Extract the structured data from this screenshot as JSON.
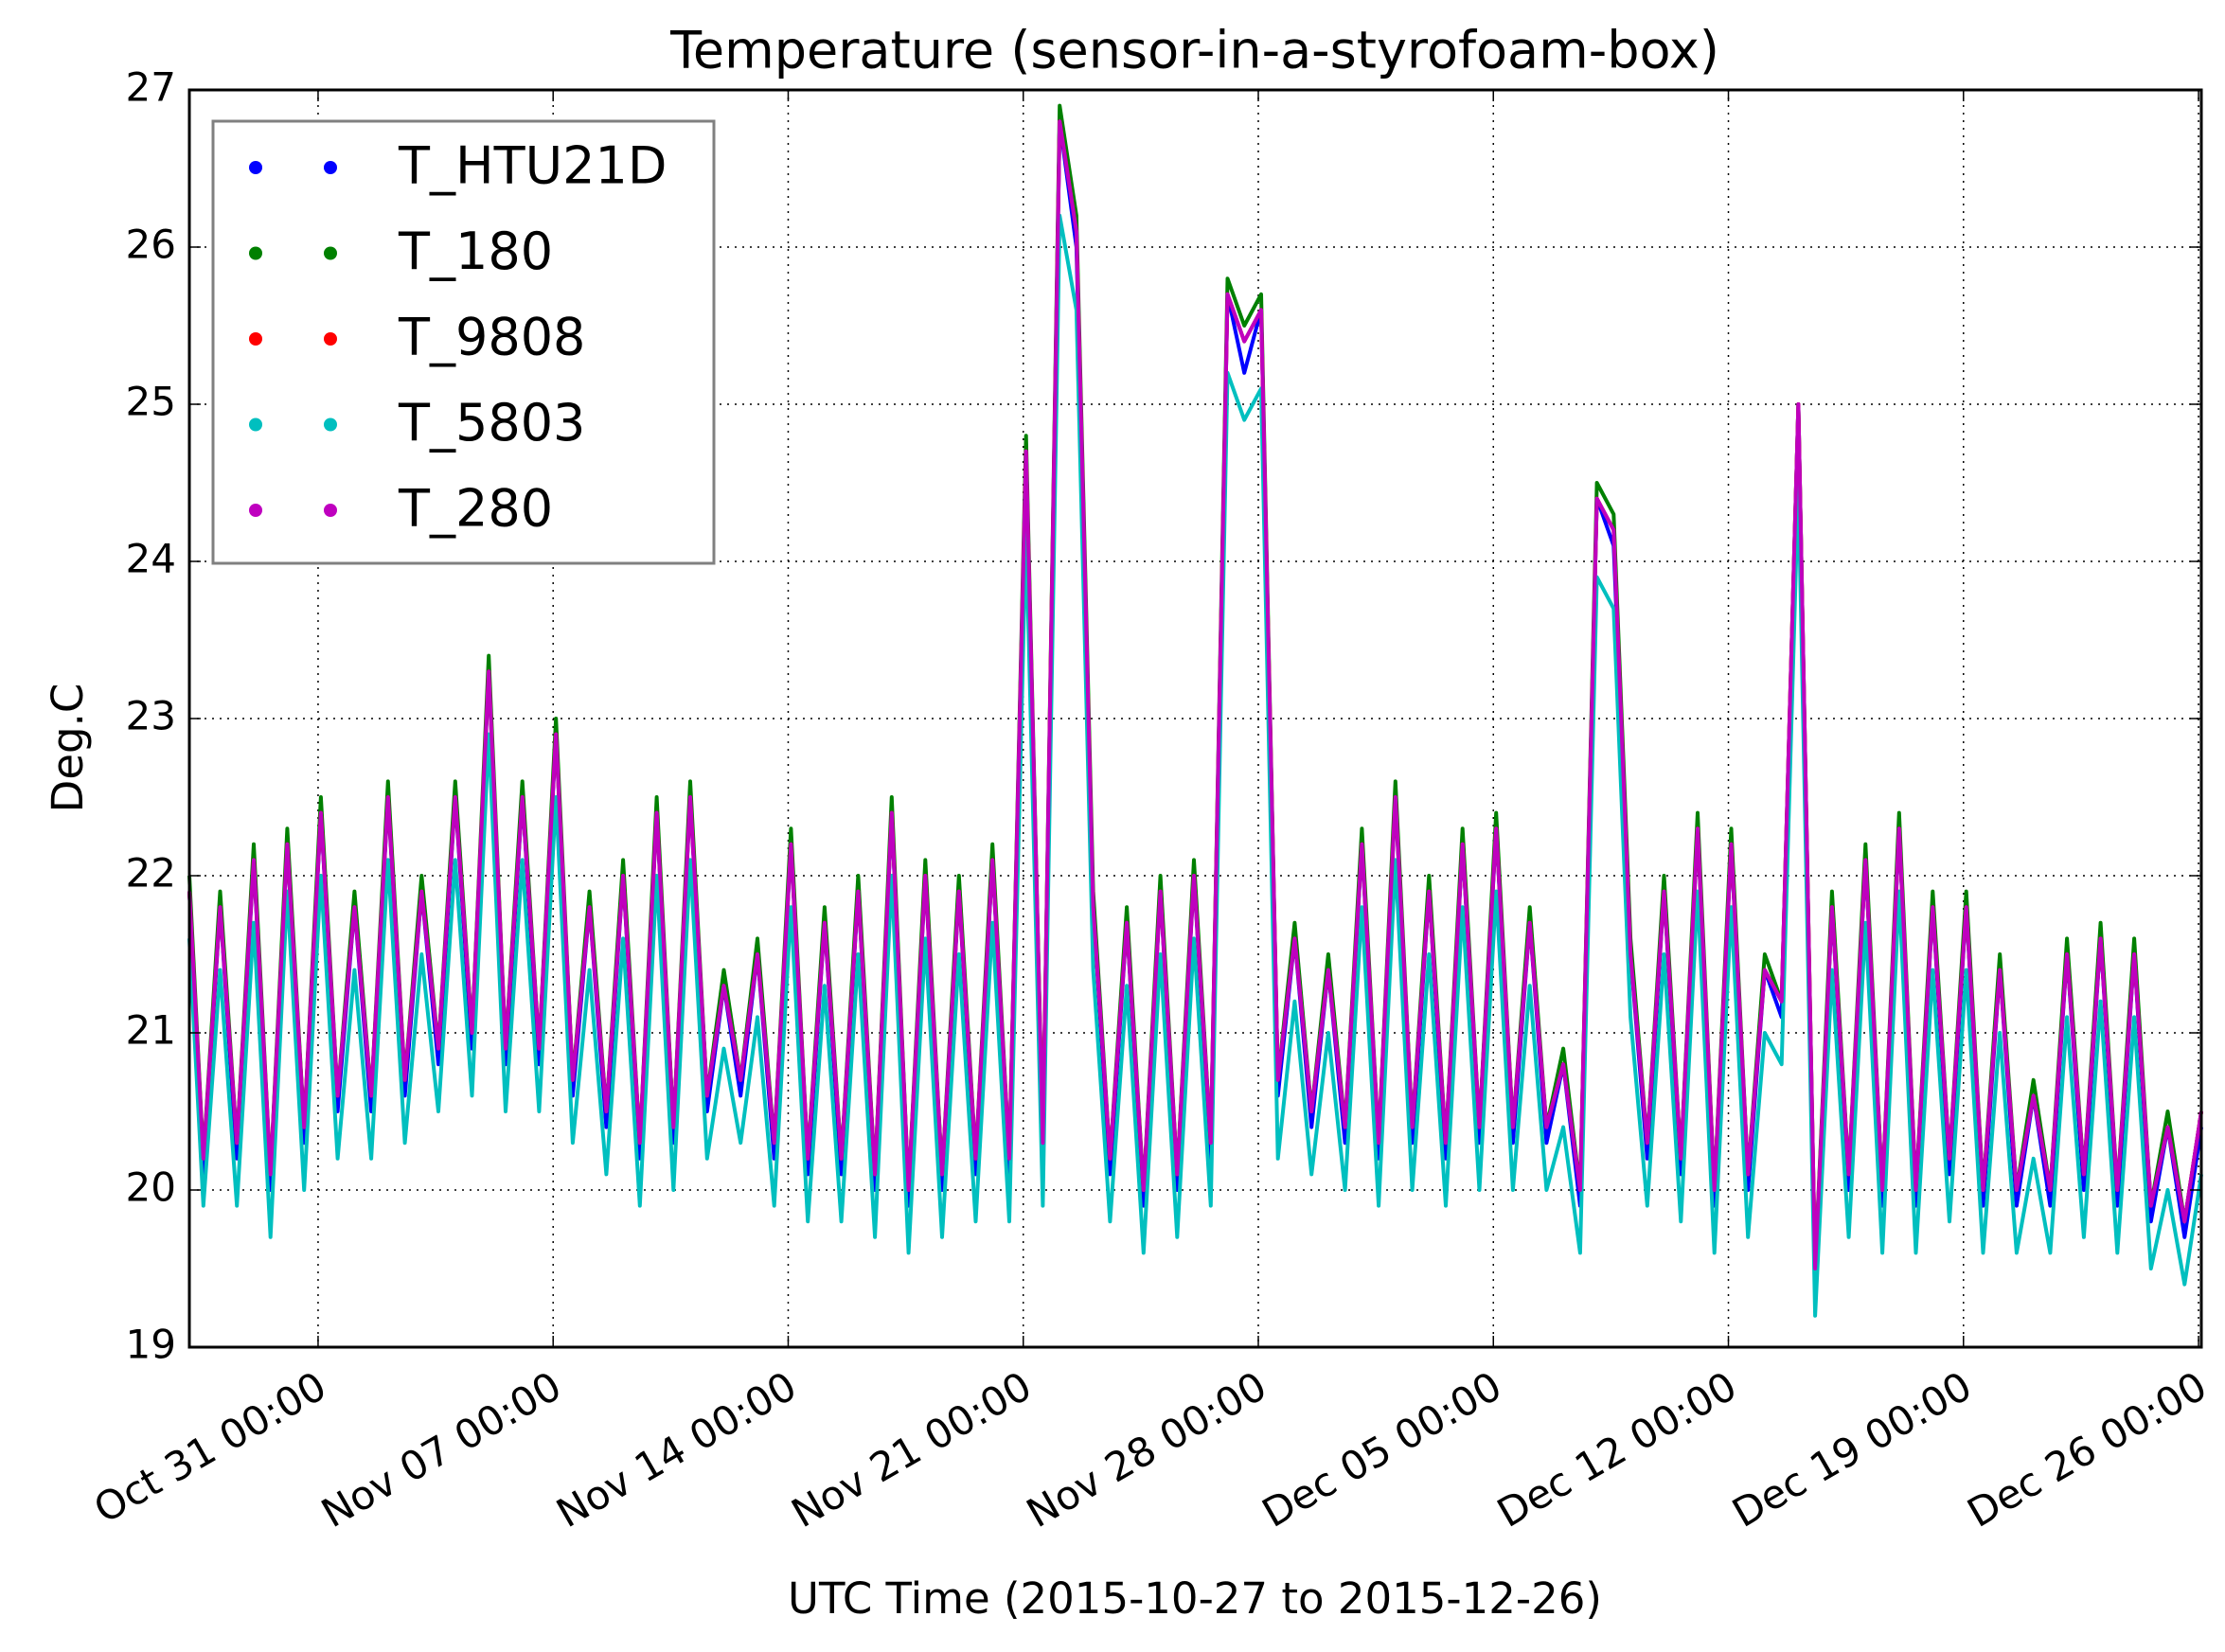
{
  "chart_data": {
    "type": "line",
    "title": "Temperature (sensor-in-a-styrofoam-box)",
    "xlabel": "UTC Time (2015-10-27 to 2015-12-26)",
    "ylabel": "Deg.C",
    "grid": true,
    "legend": "upper left",
    "xlim": [
      "2015-10-27T04:00",
      "2015-12-26T02:00"
    ],
    "xticks": [
      {
        "value": "2015-10-31T00:00",
        "label": "Oct 31 00:00"
      },
      {
        "value": "2015-11-07T00:00",
        "label": "Nov 07 00:00"
      },
      {
        "value": "2015-11-14T00:00",
        "label": "Nov 14 00:00"
      },
      {
        "value": "2015-11-21T00:00",
        "label": "Nov 21 00:00"
      },
      {
        "value": "2015-11-28T00:00",
        "label": "Nov 28 00:00"
      },
      {
        "value": "2015-12-05T00:00",
        "label": "Dec 05 00:00"
      },
      {
        "value": "2015-12-12T00:00",
        "label": "Dec 12 00:00"
      },
      {
        "value": "2015-12-19T00:00",
        "label": "Dec 19 00:00"
      },
      {
        "value": "2015-12-26T00:00",
        "label": "Dec 26 00:00"
      }
    ],
    "ylim": [
      19,
      27
    ],
    "yticks": [
      19,
      20,
      21,
      22,
      23,
      24,
      25,
      26,
      27
    ],
    "x": [
      "2015-10-27T04:00",
      "2015-10-27T14:00",
      "2015-10-28T02:00",
      "2015-10-28T14:00",
      "2015-10-29T02:00",
      "2015-10-29T14:00",
      "2015-10-30T02:00",
      "2015-10-30T14:00",
      "2015-10-31T02:00",
      "2015-10-31T14:00",
      "2015-11-01T02:00",
      "2015-11-01T14:00",
      "2015-11-02T02:00",
      "2015-11-02T14:00",
      "2015-11-03T02:00",
      "2015-11-03T14:00",
      "2015-11-04T02:00",
      "2015-11-04T14:00",
      "2015-11-05T02:00",
      "2015-11-05T14:00",
      "2015-11-06T02:00",
      "2015-11-06T14:00",
      "2015-11-07T02:00",
      "2015-11-07T14:00",
      "2015-11-08T02:00",
      "2015-11-08T14:00",
      "2015-11-09T02:00",
      "2015-11-09T14:00",
      "2015-11-10T02:00",
      "2015-11-10T14:00",
      "2015-11-11T02:00",
      "2015-11-11T14:00",
      "2015-11-12T02:00",
      "2015-11-12T14:00",
      "2015-11-13T02:00",
      "2015-11-13T14:00",
      "2015-11-14T02:00",
      "2015-11-14T14:00",
      "2015-11-15T02:00",
      "2015-11-15T14:00",
      "2015-11-16T02:00",
      "2015-11-16T14:00",
      "2015-11-17T02:00",
      "2015-11-17T14:00",
      "2015-11-18T02:00",
      "2015-11-18T14:00",
      "2015-11-19T02:00",
      "2015-11-19T14:00",
      "2015-11-20T02:00",
      "2015-11-20T14:00",
      "2015-11-21T02:00",
      "2015-11-21T14:00",
      "2015-11-22T02:00",
      "2015-11-22T14:00",
      "2015-11-23T02:00",
      "2015-11-23T14:00",
      "2015-11-24T02:00",
      "2015-11-24T14:00",
      "2015-11-25T02:00",
      "2015-11-25T14:00",
      "2015-11-26T02:00",
      "2015-11-26T14:00",
      "2015-11-27T02:00",
      "2015-11-27T14:00",
      "2015-11-28T02:00",
      "2015-11-28T14:00",
      "2015-11-29T02:00",
      "2015-11-29T14:00",
      "2015-11-30T02:00",
      "2015-11-30T14:00",
      "2015-12-01T02:00",
      "2015-12-01T14:00",
      "2015-12-02T02:00",
      "2015-12-02T14:00",
      "2015-12-03T02:00",
      "2015-12-03T14:00",
      "2015-12-04T02:00",
      "2015-12-04T14:00",
      "2015-12-05T02:00",
      "2015-12-05T14:00",
      "2015-12-06T02:00",
      "2015-12-06T14:00",
      "2015-12-07T02:00",
      "2015-12-07T14:00",
      "2015-12-08T02:00",
      "2015-12-08T14:00",
      "2015-12-09T02:00",
      "2015-12-09T14:00",
      "2015-12-10T02:00",
      "2015-12-10T14:00",
      "2015-12-11T02:00",
      "2015-12-11T14:00",
      "2015-12-12T02:00",
      "2015-12-12T14:00",
      "2015-12-13T02:00",
      "2015-12-13T14:00",
      "2015-12-14T02:00",
      "2015-12-14T14:00",
      "2015-12-15T02:00",
      "2015-12-15T14:00",
      "2015-12-16T02:00",
      "2015-12-16T14:00",
      "2015-12-17T02:00",
      "2015-12-17T14:00",
      "2015-12-18T02:00",
      "2015-12-18T14:00",
      "2015-12-19T02:00",
      "2015-12-19T14:00",
      "2015-12-20T02:00",
      "2015-12-20T14:00",
      "2015-12-21T02:00",
      "2015-12-21T14:00",
      "2015-12-22T02:00",
      "2015-12-22T14:00",
      "2015-12-23T02:00",
      "2015-12-23T14:00",
      "2015-12-24T02:00",
      "2015-12-24T14:00",
      "2015-12-25T02:00",
      "2015-12-25T14:00",
      "2015-12-26T02:00"
    ],
    "series": [
      {
        "name": "T_HTU21D",
        "color": "#0000ff",
        "values": [
          21.9,
          20.1,
          21.8,
          20.2,
          22.1,
          20.0,
          22.2,
          20.3,
          22.4,
          20.5,
          21.8,
          20.5,
          22.5,
          20.6,
          21.9,
          20.8,
          22.5,
          20.9,
          23.3,
          20.8,
          22.5,
          20.8,
          22.9,
          20.6,
          21.8,
          20.4,
          22.0,
          20.2,
          22.4,
          20.3,
          22.5,
          20.5,
          21.3,
          20.6,
          21.5,
          20.2,
          22.2,
          20.1,
          21.7,
          20.1,
          21.9,
          20.0,
          22.4,
          19.9,
          22.0,
          20.0,
          21.9,
          20.1,
          22.1,
          20.1,
          24.7,
          20.2,
          26.8,
          26.0,
          21.8,
          20.1,
          21.7,
          19.9,
          21.9,
          20.0,
          22.0,
          20.2,
          25.7,
          25.2,
          25.6,
          20.6,
          21.6,
          20.4,
          21.4,
          20.3,
          22.2,
          20.2,
          22.5,
          20.3,
          21.9,
          20.2,
          22.2,
          20.3,
          22.3,
          20.3,
          21.7,
          20.3,
          20.8,
          19.9,
          24.4,
          24.1,
          21.5,
          20.2,
          21.9,
          20.1,
          22.3,
          19.9,
          22.2,
          20.0,
          21.4,
          21.1,
          25.0,
          19.4,
          21.8,
          20.0,
          22.1,
          19.9,
          22.3,
          19.9,
          21.8,
          20.1,
          21.8,
          19.9,
          21.4,
          19.9,
          20.6,
          19.9,
          21.5,
          20.0,
          21.6,
          19.9,
          21.5,
          19.8,
          20.4,
          19.7,
          20.4
        ]
      },
      {
        "name": "T_180",
        "color": "#008000",
        "values": [
          22.0,
          20.2,
          21.9,
          20.3,
          22.2,
          20.1,
          22.3,
          20.4,
          22.5,
          20.6,
          21.9,
          20.6,
          22.6,
          20.7,
          22.0,
          20.9,
          22.6,
          21.0,
          23.4,
          20.9,
          22.6,
          20.9,
          23.0,
          20.7,
          21.9,
          20.5,
          22.1,
          20.3,
          22.5,
          20.4,
          22.6,
          20.6,
          21.4,
          20.7,
          21.6,
          20.3,
          22.3,
          20.2,
          21.8,
          20.2,
          22.0,
          20.1,
          22.5,
          20.0,
          22.1,
          20.1,
          22.0,
          20.2,
          22.2,
          20.2,
          24.8,
          20.3,
          26.9,
          26.2,
          21.9,
          20.2,
          21.8,
          20.0,
          22.0,
          20.1,
          22.1,
          20.3,
          25.8,
          25.5,
          25.7,
          20.7,
          21.7,
          20.5,
          21.5,
          20.4,
          22.3,
          20.3,
          22.6,
          20.4,
          22.0,
          20.3,
          22.3,
          20.4,
          22.4,
          20.4,
          21.8,
          20.4,
          20.9,
          20.0,
          24.5,
          24.3,
          21.6,
          20.3,
          22.0,
          20.2,
          22.4,
          20.0,
          22.3,
          20.1,
          21.5,
          21.2,
          25.0,
          19.5,
          21.9,
          20.1,
          22.2,
          20.0,
          22.4,
          20.0,
          21.9,
          20.2,
          21.9,
          20.0,
          21.5,
          20.0,
          20.7,
          20.0,
          21.6,
          20.1,
          21.7,
          20.0,
          21.6,
          19.9,
          20.5,
          19.8,
          20.5
        ]
      },
      {
        "name": "T_9808",
        "color": "#ff0000",
        "values": [
          21.9,
          20.2,
          21.8,
          20.3,
          22.1,
          20.1,
          22.2,
          20.4,
          22.4,
          20.6,
          21.8,
          20.6,
          22.5,
          20.7,
          21.9,
          20.9,
          22.5,
          21.0,
          23.3,
          20.9,
          22.5,
          20.9,
          22.9,
          20.7,
          21.8,
          20.5,
          22.0,
          20.3,
          22.4,
          20.4,
          22.5,
          20.6,
          21.3,
          20.7,
          21.5,
          20.3,
          22.2,
          20.2,
          21.7,
          20.2,
          21.9,
          20.1,
          22.4,
          20.0,
          22.0,
          20.1,
          21.9,
          20.2,
          22.1,
          20.2,
          24.7,
          20.3,
          26.8,
          26.1,
          21.8,
          20.2,
          21.7,
          20.0,
          21.9,
          20.1,
          22.0,
          20.3,
          25.7,
          25.4,
          25.6,
          20.7,
          21.6,
          20.5,
          21.4,
          20.4,
          22.2,
          20.3,
          22.5,
          20.4,
          21.9,
          20.3,
          22.2,
          20.4,
          22.3,
          20.4,
          21.7,
          20.4,
          20.8,
          20.0,
          24.4,
          24.2,
          21.5,
          20.3,
          21.9,
          20.2,
          22.3,
          20.0,
          22.2,
          20.1,
          21.4,
          21.2,
          25.0,
          19.5,
          21.8,
          20.1,
          22.1,
          20.0,
          22.3,
          20.0,
          21.8,
          20.2,
          21.8,
          20.0,
          21.4,
          20.0,
          20.6,
          20.0,
          21.5,
          20.1,
          21.6,
          20.0,
          21.5,
          19.9,
          20.4,
          19.8,
          20.5
        ]
      },
      {
        "name": "T_5803",
        "color": "#00bfbf",
        "values": [
          21.6,
          19.9,
          21.4,
          19.9,
          21.7,
          19.7,
          21.9,
          20.0,
          22.0,
          20.2,
          21.4,
          20.2,
          22.1,
          20.3,
          21.5,
          20.5,
          22.1,
          20.6,
          22.9,
          20.5,
          22.1,
          20.5,
          22.5,
          20.3,
          21.4,
          20.1,
          21.6,
          19.9,
          22.0,
          20.0,
          22.1,
          20.2,
          20.9,
          20.3,
          21.1,
          19.9,
          21.8,
          19.8,
          21.3,
          19.8,
          21.5,
          19.7,
          22.0,
          19.6,
          21.6,
          19.7,
          21.5,
          19.8,
          21.7,
          19.8,
          24.2,
          19.9,
          26.2,
          25.6,
          21.4,
          19.8,
          21.3,
          19.6,
          21.5,
          19.7,
          21.6,
          19.9,
          25.2,
          24.9,
          25.1,
          20.2,
          21.2,
          20.1,
          21.0,
          20.0,
          21.8,
          19.9,
          22.1,
          20.0,
          21.5,
          19.9,
          21.8,
          20.0,
          21.9,
          20.0,
          21.3,
          20.0,
          20.4,
          19.6,
          23.9,
          23.7,
          21.1,
          19.9,
          21.5,
          19.8,
          21.9,
          19.6,
          21.8,
          19.7,
          21.0,
          20.8,
          24.5,
          19.2,
          21.4,
          19.7,
          21.7,
          19.6,
          21.9,
          19.6,
          21.4,
          19.8,
          21.4,
          19.6,
          21.0,
          19.6,
          20.2,
          19.6,
          21.1,
          19.7,
          21.2,
          19.6,
          21.1,
          19.5,
          20.0,
          19.4,
          20.1
        ]
      },
      {
        "name": "T_280",
        "color": "#bf00bf",
        "values": [
          21.9,
          20.2,
          21.8,
          20.3,
          22.1,
          20.1,
          22.2,
          20.4,
          22.4,
          20.6,
          21.8,
          20.6,
          22.5,
          20.7,
          21.9,
          20.9,
          22.5,
          21.0,
          23.3,
          20.9,
          22.5,
          20.9,
          22.9,
          20.7,
          21.8,
          20.5,
          22.0,
          20.3,
          22.4,
          20.4,
          22.5,
          20.6,
          21.3,
          20.7,
          21.5,
          20.3,
          22.2,
          20.2,
          21.7,
          20.2,
          21.9,
          20.1,
          22.4,
          20.0,
          22.0,
          20.1,
          21.9,
          20.2,
          22.1,
          20.2,
          24.7,
          20.3,
          26.8,
          26.1,
          21.8,
          20.2,
          21.7,
          20.0,
          21.9,
          20.1,
          22.0,
          20.3,
          25.7,
          25.4,
          25.6,
          20.7,
          21.6,
          20.5,
          21.4,
          20.4,
          22.2,
          20.3,
          22.5,
          20.4,
          21.9,
          20.3,
          22.2,
          20.4,
          22.3,
          20.4,
          21.7,
          20.4,
          20.8,
          20.0,
          24.4,
          24.2,
          21.5,
          20.3,
          21.9,
          20.2,
          22.3,
          20.0,
          22.2,
          20.1,
          21.4,
          21.2,
          25.0,
          19.5,
          21.8,
          20.1,
          22.1,
          20.0,
          22.3,
          20.0,
          21.8,
          20.2,
          21.8,
          20.0,
          21.4,
          20.0,
          20.6,
          20.0,
          21.5,
          20.1,
          21.6,
          20.0,
          21.5,
          19.9,
          20.4,
          19.8,
          20.5
        ]
      }
    ]
  }
}
